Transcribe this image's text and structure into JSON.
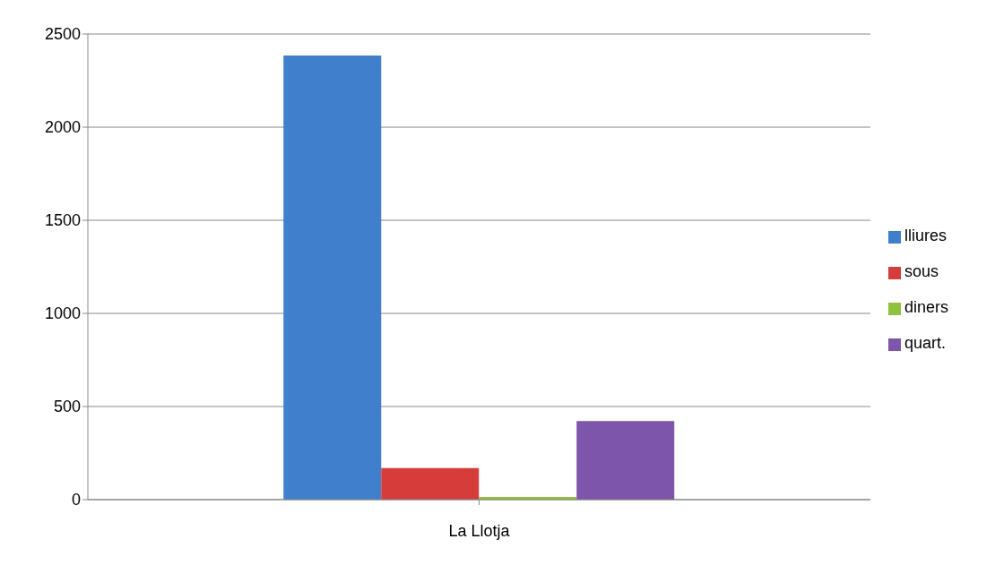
{
  "chart_data": {
    "type": "bar",
    "categories": [
      "La Llotja"
    ],
    "series": [
      {
        "name": "lliures",
        "color": "#3f7fcc",
        "values": [
          2385
        ]
      },
      {
        "name": "sous",
        "color": "#d63c3a",
        "values": [
          170
        ]
      },
      {
        "name": "diners",
        "color": "#8fc13d",
        "values": [
          15
        ]
      },
      {
        "name": "quart.",
        "color": "#7d55aa",
        "values": [
          422
        ]
      }
    ],
    "ylim": [
      0,
      2500
    ],
    "yticks": [
      0,
      500,
      1000,
      1500,
      2000,
      2500
    ],
    "grid": "y",
    "legend": "right"
  }
}
